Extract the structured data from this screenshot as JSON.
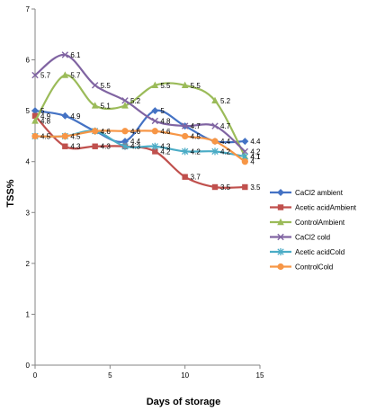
{
  "chart_data": {
    "type": "line",
    "xlabel": "Days of storage",
    "ylabel": "TSS%",
    "xlim": [
      0,
      15
    ],
    "ylim": [
      0,
      7
    ],
    "xticks": [
      0,
      5,
      10,
      15
    ],
    "yticks": [
      0,
      1,
      2,
      3,
      4,
      5,
      6,
      7
    ],
    "x": [
      0,
      2,
      4,
      6,
      8,
      10,
      12,
      14
    ],
    "grid": false,
    "legend_position": "right",
    "series": [
      {
        "name": "CaCl2 ambient",
        "values": [
          5,
          4.9,
          4.6,
          4.4,
          5,
          4.7,
          4.4,
          4.4
        ],
        "labels": [
          "5",
          "4.9",
          "",
          "4.4",
          "5",
          "4.7",
          "4.4",
          "4.4"
        ],
        "color": "#4472C4",
        "marker": "diamond"
      },
      {
        "name": "Acetic acidAmbient",
        "values": [
          4.9,
          4.3,
          4.3,
          4.3,
          4.2,
          3.7,
          3.5,
          3.5
        ],
        "labels": [
          "4.9",
          "4.3",
          "4.3",
          "4.3",
          "4.2",
          "3.7",
          "3.5",
          "3.5"
        ],
        "color": "#C0504D",
        "marker": "square"
      },
      {
        "name": "ControlAmbient",
        "values": [
          4.8,
          5.7,
          5.1,
          5.1,
          5.5,
          5.5,
          5.2,
          4.1
        ],
        "labels": [
          "4.8",
          "5.7",
          "5.1",
          "",
          "5.5",
          "5.5",
          "5.2",
          "4.1"
        ],
        "color": "#9BBB59",
        "marker": "triangle"
      },
      {
        "name": "CaCl2 cold",
        "values": [
          5.7,
          6.1,
          5.5,
          5.2,
          4.8,
          4.7,
          4.7,
          4.2
        ],
        "labels": [
          "5.7",
          "6.1",
          "5.5",
          "5.2",
          "4.8",
          "",
          "4.7",
          "4.2"
        ],
        "color": "#8064A2",
        "marker": "x"
      },
      {
        "name": "Acetic acidCold",
        "values": [
          4.5,
          4.5,
          4.6,
          4.3,
          4.3,
          4.2,
          4.2,
          4.1
        ],
        "labels": [
          "",
          "",
          "",
          "",
          "4.3",
          "4.2",
          "4.2",
          "4.1"
        ],
        "color": "#4BACC6",
        "marker": "star"
      },
      {
        "name": "ControlCold",
        "values": [
          4.5,
          4.5,
          4.6,
          4.6,
          4.6,
          4.5,
          4.4,
          4
        ],
        "labels": [
          "4.5",
          "4.5",
          "4.6",
          "4.6",
          "4.6",
          "4.5",
          "",
          "4"
        ],
        "color": "#F79646",
        "marker": "circle"
      }
    ]
  }
}
